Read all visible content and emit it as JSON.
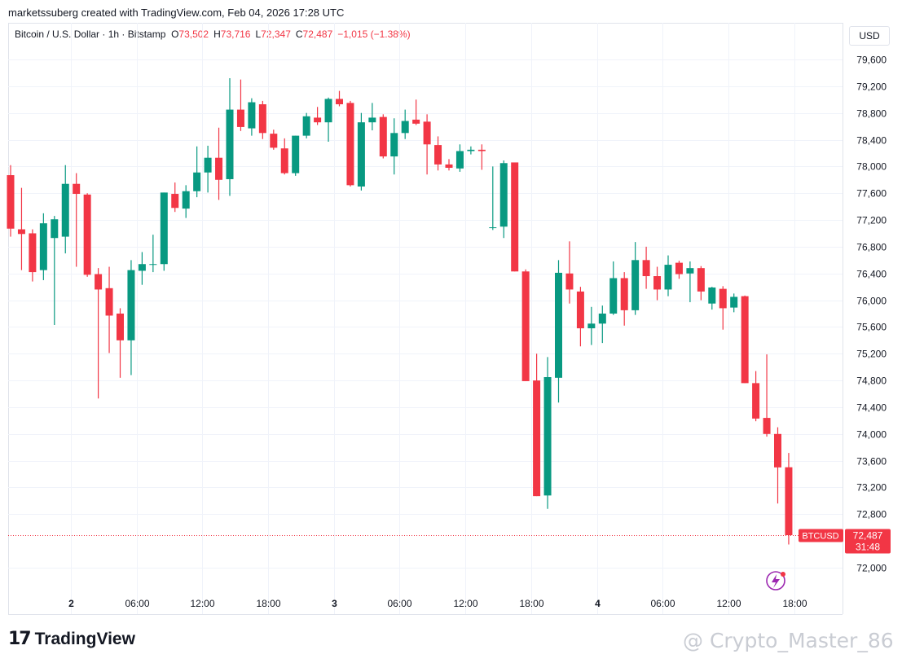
{
  "header": {
    "attribution": "marketssuberg created with TradingView.com, Feb 04, 2026 17:28 UTC"
  },
  "legend": {
    "symbol": "Bitcoin / U.S. Dollar · 1h · Bitstamp",
    "o_label": "O",
    "o_value": "73,502",
    "h_label": "H",
    "h_value": "73,716",
    "l_label": "L",
    "l_value": "72,347",
    "c_label": "C",
    "c_value": "72,487",
    "change": "−1,015 (−1.38%)"
  },
  "currency_button": "USD",
  "price_tag": {
    "symbol": "BTCUSD",
    "price": "72,487",
    "countdown": "31:48"
  },
  "branding": {
    "logo_mark": "17",
    "logo_text": "TradingView"
  },
  "watermark": "@ Crypto_Master_86",
  "colors": {
    "up": "#089981",
    "down": "#f23645",
    "grid": "#f0f3fa",
    "text": "#131722"
  },
  "chart_data": {
    "type": "candlestick",
    "symbol": "BTCUSD",
    "interval": "1h",
    "ylim": [
      71700,
      79800
    ],
    "y_ticks": [
      79600,
      79200,
      78800,
      78400,
      78000,
      77600,
      77200,
      76800,
      76400,
      76000,
      75600,
      75200,
      74800,
      74400,
      74000,
      73600,
      73200,
      72800,
      72000
    ],
    "y_tick_labels": [
      "79,600",
      "79,200",
      "78,800",
      "78,400",
      "78,000",
      "77,600",
      "77,200",
      "76,800",
      "76,400",
      "76,000",
      "75,600",
      "75,200",
      "74,800",
      "74,400",
      "74,000",
      "73,600",
      "73,200",
      "72,800",
      "72,000"
    ],
    "x_ticks": [
      {
        "index": 5.5,
        "label": "2"
      },
      {
        "index": 11.5,
        "label": "06:00"
      },
      {
        "index": 17.5,
        "label": "12:00"
      },
      {
        "index": 23.5,
        "label": "18:00"
      },
      {
        "index": 29.5,
        "label": "3"
      },
      {
        "index": 35.5,
        "label": "06:00"
      },
      {
        "index": 41.5,
        "label": "12:00"
      },
      {
        "index": 47.5,
        "label": "18:00"
      },
      {
        "index": 53.5,
        "label": "4"
      },
      {
        "index": 59.5,
        "label": "06:00"
      },
      {
        "index": 65.5,
        "label": "12:00"
      },
      {
        "index": 71.5,
        "label": "18:00"
      }
    ],
    "last_price": 72487,
    "candles": [
      {
        "o": 77870,
        "h": 78020,
        "l": 76950,
        "c": 77070
      },
      {
        "o": 77060,
        "h": 77680,
        "l": 76450,
        "c": 76990
      },
      {
        "o": 77000,
        "h": 77060,
        "l": 76280,
        "c": 76420
      },
      {
        "o": 76450,
        "h": 77300,
        "l": 76300,
        "c": 77150
      },
      {
        "o": 76930,
        "h": 77260,
        "l": 75630,
        "c": 77210
      },
      {
        "o": 76950,
        "h": 78020,
        "l": 76700,
        "c": 77740
      },
      {
        "o": 77740,
        "h": 77900,
        "l": 76500,
        "c": 77590
      },
      {
        "o": 77580,
        "h": 77600,
        "l": 76350,
        "c": 76380
      },
      {
        "o": 76390,
        "h": 76480,
        "l": 74530,
        "c": 76160
      },
      {
        "o": 76180,
        "h": 76500,
        "l": 75210,
        "c": 75770
      },
      {
        "o": 75800,
        "h": 75880,
        "l": 74840,
        "c": 75400
      },
      {
        "o": 75400,
        "h": 76600,
        "l": 74880,
        "c": 76450
      },
      {
        "o": 76440,
        "h": 76720,
        "l": 76230,
        "c": 76540
      },
      {
        "o": 76540,
        "h": 76980,
        "l": 76420,
        "c": 76540
      },
      {
        "o": 76540,
        "h": 77610,
        "l": 76440,
        "c": 77610
      },
      {
        "o": 77590,
        "h": 77760,
        "l": 77320,
        "c": 77380
      },
      {
        "o": 77370,
        "h": 77720,
        "l": 77230,
        "c": 77630
      },
      {
        "o": 77630,
        "h": 78300,
        "l": 77540,
        "c": 77910
      },
      {
        "o": 77910,
        "h": 78310,
        "l": 77610,
        "c": 78130
      },
      {
        "o": 78130,
        "h": 78580,
        "l": 77500,
        "c": 77800
      },
      {
        "o": 77810,
        "h": 79320,
        "l": 77560,
        "c": 78850
      },
      {
        "o": 78850,
        "h": 79300,
        "l": 78530,
        "c": 78590
      },
      {
        "o": 78570,
        "h": 79020,
        "l": 78460,
        "c": 78960
      },
      {
        "o": 78930,
        "h": 78980,
        "l": 78410,
        "c": 78500
      },
      {
        "o": 78490,
        "h": 78550,
        "l": 78250,
        "c": 78280
      },
      {
        "o": 78270,
        "h": 78420,
        "l": 77880,
        "c": 77900
      },
      {
        "o": 77900,
        "h": 78460,
        "l": 77860,
        "c": 78460
      },
      {
        "o": 78460,
        "h": 78800,
        "l": 78420,
        "c": 78750
      },
      {
        "o": 78730,
        "h": 78890,
        "l": 78620,
        "c": 78660
      },
      {
        "o": 78660,
        "h": 79030,
        "l": 78370,
        "c": 79010
      },
      {
        "o": 79010,
        "h": 79130,
        "l": 78900,
        "c": 78930
      },
      {
        "o": 78950,
        "h": 78980,
        "l": 77700,
        "c": 77720
      },
      {
        "o": 77700,
        "h": 78800,
        "l": 77640,
        "c": 78660
      },
      {
        "o": 78660,
        "h": 78950,
        "l": 78540,
        "c": 78730
      },
      {
        "o": 78740,
        "h": 78780,
        "l": 78120,
        "c": 78150
      },
      {
        "o": 78150,
        "h": 78720,
        "l": 77880,
        "c": 78500
      },
      {
        "o": 78500,
        "h": 78850,
        "l": 78410,
        "c": 78680
      },
      {
        "o": 78700,
        "h": 79000,
        "l": 78620,
        "c": 78640
      },
      {
        "o": 78670,
        "h": 78780,
        "l": 77880,
        "c": 78330
      },
      {
        "o": 78320,
        "h": 78450,
        "l": 77940,
        "c": 78030
      },
      {
        "o": 78030,
        "h": 78110,
        "l": 77940,
        "c": 77980
      },
      {
        "o": 77970,
        "h": 78330,
        "l": 77920,
        "c": 78230
      },
      {
        "o": 78230,
        "h": 78300,
        "l": 78180,
        "c": 78250
      },
      {
        "o": 78250,
        "h": 78330,
        "l": 77950,
        "c": 78230
      },
      {
        "o": 77080,
        "h": 78000,
        "l": 77050,
        "c": 77090
      },
      {
        "o": 77100,
        "h": 78090,
        "l": 76930,
        "c": 78050
      },
      {
        "o": 78060,
        "h": 78060,
        "l": 76430,
        "c": 76430
      },
      {
        "o": 76430,
        "h": 76460,
        "l": 74790,
        "c": 74790
      },
      {
        "o": 74800,
        "h": 75200,
        "l": 73070,
        "c": 73070
      },
      {
        "o": 73080,
        "h": 75150,
        "l": 72880,
        "c": 74850
      },
      {
        "o": 74840,
        "h": 76600,
        "l": 74470,
        "c": 76410
      },
      {
        "o": 76400,
        "h": 76880,
        "l": 75950,
        "c": 76160
      },
      {
        "o": 76130,
        "h": 76200,
        "l": 75310,
        "c": 75580
      },
      {
        "o": 75580,
        "h": 75900,
        "l": 75330,
        "c": 75650
      },
      {
        "o": 75650,
        "h": 75920,
        "l": 75360,
        "c": 75800
      },
      {
        "o": 75800,
        "h": 76580,
        "l": 75780,
        "c": 76330
      },
      {
        "o": 76330,
        "h": 76420,
        "l": 75620,
        "c": 75850
      },
      {
        "o": 75850,
        "h": 76870,
        "l": 75780,
        "c": 76600
      },
      {
        "o": 76600,
        "h": 76800,
        "l": 76170,
        "c": 76360
      },
      {
        "o": 76360,
        "h": 76500,
        "l": 76000,
        "c": 76160
      },
      {
        "o": 76160,
        "h": 76670,
        "l": 76060,
        "c": 76530
      },
      {
        "o": 76560,
        "h": 76590,
        "l": 76320,
        "c": 76390
      },
      {
        "o": 76400,
        "h": 76580,
        "l": 75970,
        "c": 76480
      },
      {
        "o": 76480,
        "h": 76510,
        "l": 76000,
        "c": 76130
      },
      {
        "o": 75950,
        "h": 76200,
        "l": 75860,
        "c": 76190
      },
      {
        "o": 76170,
        "h": 76210,
        "l": 75560,
        "c": 75880
      },
      {
        "o": 75890,
        "h": 76100,
        "l": 75820,
        "c": 76050
      },
      {
        "o": 76060,
        "h": 76070,
        "l": 74760,
        "c": 74760
      },
      {
        "o": 74760,
        "h": 74940,
        "l": 74190,
        "c": 74230
      },
      {
        "o": 74240,
        "h": 75190,
        "l": 73960,
        "c": 74000
      },
      {
        "o": 74000,
        "h": 74100,
        "l": 72960,
        "c": 73500
      },
      {
        "o": 73502,
        "h": 73716,
        "l": 72347,
        "c": 72487
      }
    ]
  }
}
